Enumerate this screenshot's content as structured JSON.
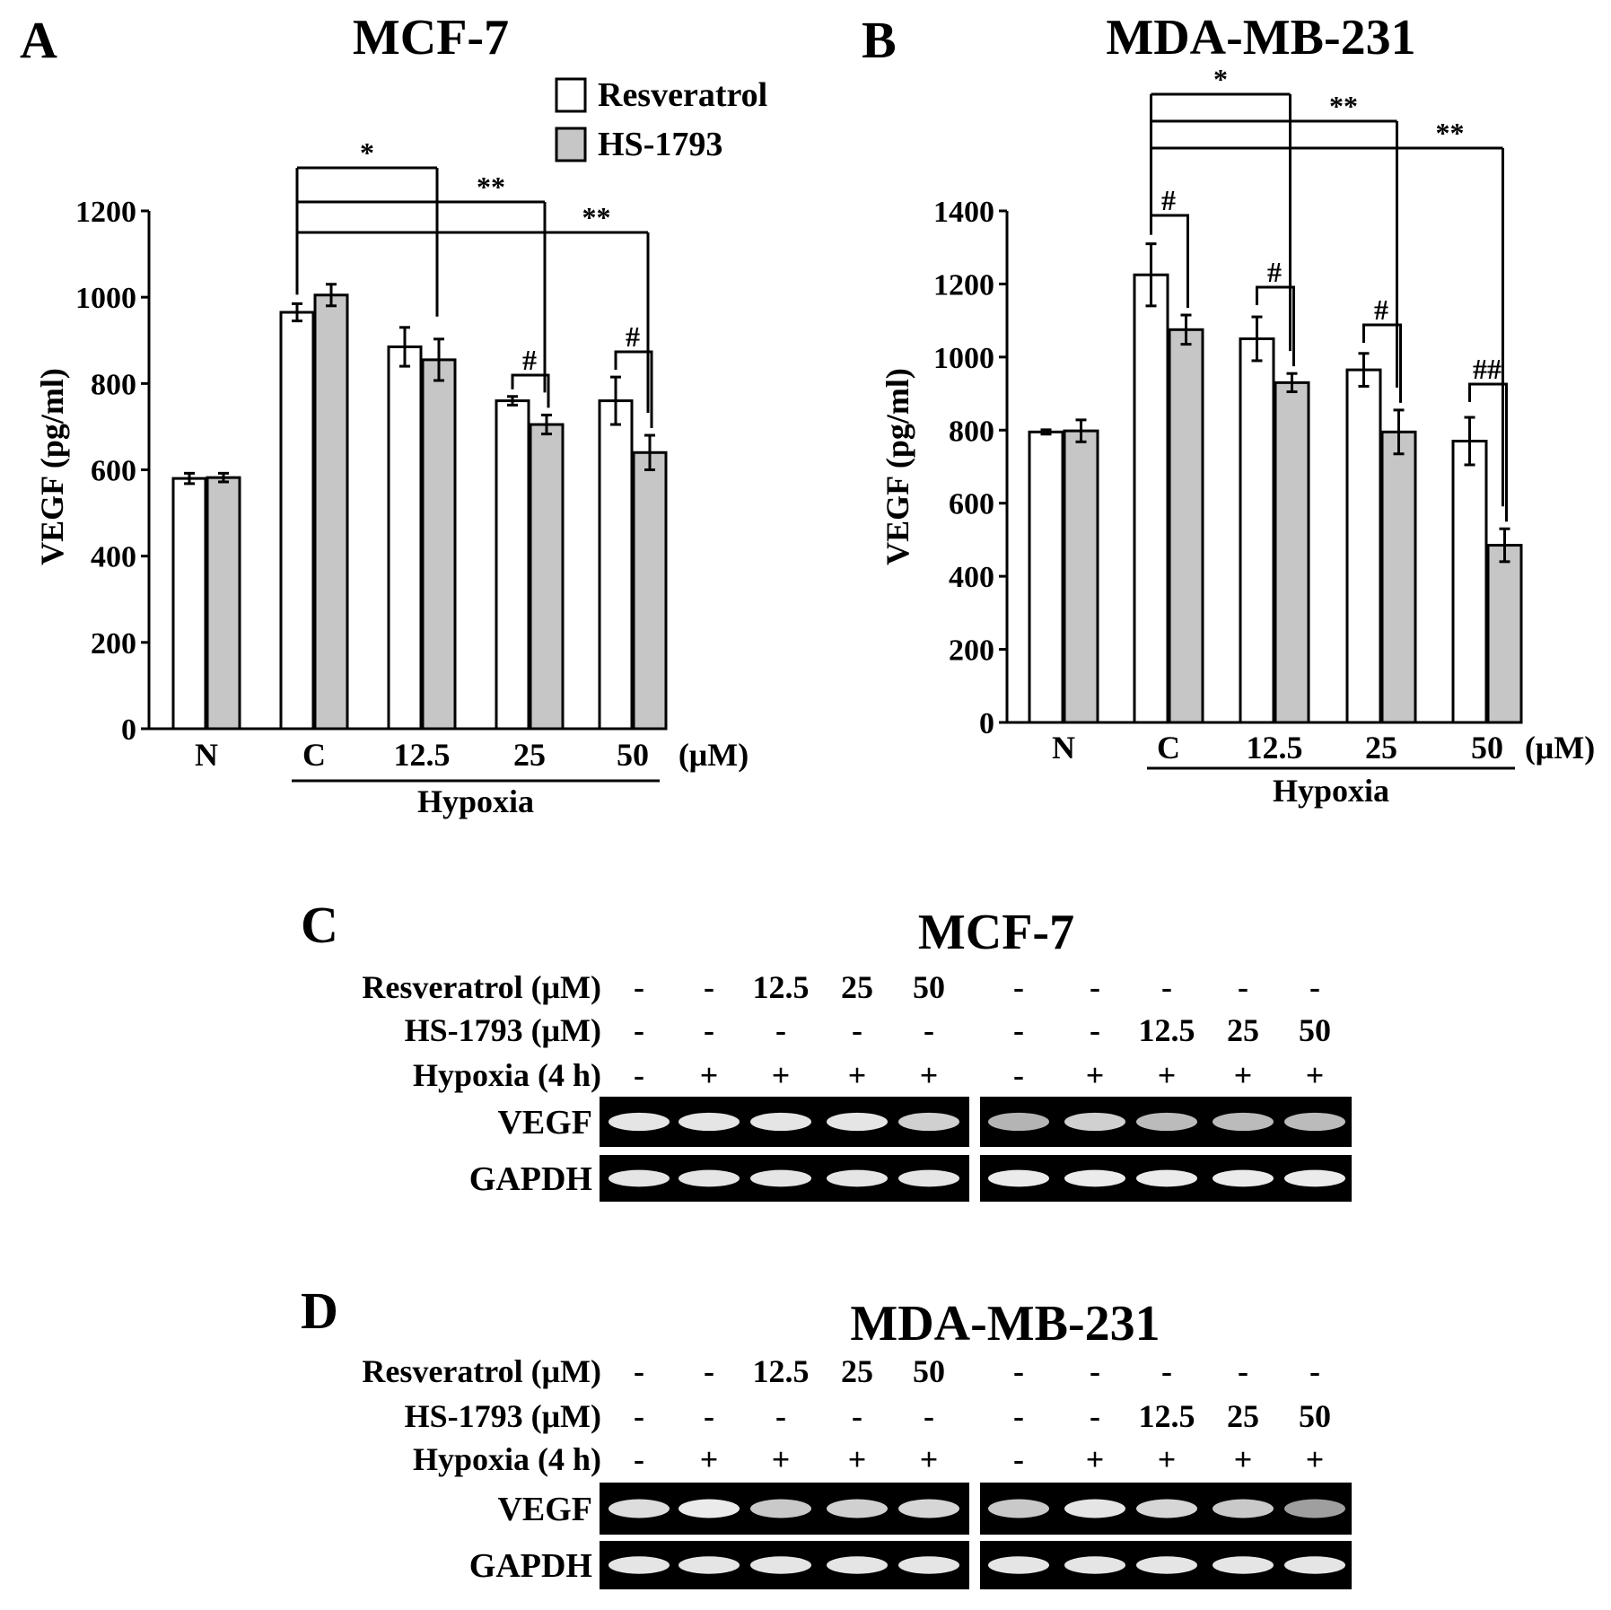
{
  "legend": {
    "items": [
      {
        "name": "Resveratrol",
        "color": "#ffffff"
      },
      {
        "name": "HS-1793",
        "color": "#c6c6c6"
      }
    ]
  },
  "chart_data": [
    {
      "panel": "A",
      "type": "bar",
      "title": "MCF-7",
      "ylabel": "VEGF (pg/ml)",
      "xunit": "(μM)",
      "group_label": "Hypoxia",
      "categories": [
        "N",
        "C",
        "12.5",
        "25",
        "50"
      ],
      "ylim": [
        0,
        1200
      ],
      "yticks": [
        0,
        200,
        400,
        600,
        800,
        1000,
        1200
      ],
      "series": [
        {
          "name": "Resveratrol",
          "values": [
            580,
            965,
            885,
            760,
            760
          ],
          "errors": [
            12,
            20,
            45,
            10,
            55
          ]
        },
        {
          "name": "HS-1793",
          "values": [
            582,
            1005,
            855,
            705,
            640
          ],
          "errors": [
            10,
            25,
            48,
            22,
            40
          ]
        }
      ],
      "comparison_brackets": [
        {
          "from": "C",
          "to": "12.5",
          "label": "*"
        },
        {
          "from": "C",
          "to": "25",
          "label": "**"
        },
        {
          "from": "C",
          "to": "50",
          "label": "**"
        }
      ],
      "pair_marks": [
        {
          "category": "25",
          "label": "#"
        },
        {
          "category": "50",
          "label": "#"
        }
      ]
    },
    {
      "panel": "B",
      "type": "bar",
      "title": "MDA-MB-231",
      "ylabel": "VEGF (pg/ml)",
      "xunit": "(μM)",
      "group_label": "Hypoxia",
      "categories": [
        "N",
        "C",
        "12.5",
        "25",
        "50"
      ],
      "ylim": [
        0,
        1400
      ],
      "yticks": [
        0,
        200,
        400,
        600,
        800,
        1000,
        1200,
        1400
      ],
      "series": [
        {
          "name": "Resveratrol",
          "values": [
            795,
            1225,
            1050,
            965,
            770
          ],
          "errors": [
            6,
            85,
            60,
            45,
            65
          ]
        },
        {
          "name": "HS-1793",
          "values": [
            798,
            1075,
            930,
            795,
            485
          ],
          "errors": [
            30,
            40,
            25,
            60,
            45
          ]
        }
      ],
      "comparison_brackets": [
        {
          "from": "C",
          "to": "12.5",
          "label": "*"
        },
        {
          "from": "C",
          "to": "25",
          "label": "**"
        },
        {
          "from": "C",
          "to": "50",
          "label": "**"
        }
      ],
      "pair_marks": [
        {
          "category": "C",
          "label": "#"
        },
        {
          "category": "12.5",
          "label": "#"
        },
        {
          "category": "25",
          "label": "#"
        },
        {
          "category": "50",
          "label": "##"
        }
      ]
    }
  ],
  "gels": [
    {
      "panel": "C",
      "title": "MCF-7",
      "rows": [
        {
          "label": "Resveratrol (μM)",
          "values": [
            "-",
            "-",
            "12.5",
            "25",
            "50",
            "-",
            "-",
            "-",
            "-",
            "-"
          ]
        },
        {
          "label": "HS-1793 (μM)",
          "values": [
            "-",
            "-",
            "-",
            "-",
            "-",
            "-",
            "-",
            "12.5",
            "25",
            "50"
          ]
        },
        {
          "label": "Hypoxia (4 h)",
          "values": [
            "-",
            "+",
            "+",
            "+",
            "+",
            "-",
            "+",
            "+",
            "+",
            "+"
          ]
        }
      ],
      "bands": [
        {
          "label": "VEGF",
          "intensity": [
            0.9,
            0.9,
            0.9,
            0.9,
            0.75,
            0.55,
            0.75,
            0.6,
            0.6,
            0.6
          ]
        },
        {
          "label": "GAPDH",
          "intensity": [
            0.9,
            0.9,
            0.9,
            0.9,
            0.9,
            0.95,
            0.95,
            0.95,
            0.95,
            0.95
          ]
        }
      ]
    },
    {
      "panel": "D",
      "title": "MDA-MB-231",
      "rows": [
        {
          "label": "Resveratrol (μM)",
          "values": [
            "-",
            "-",
            "12.5",
            "25",
            "50",
            "-",
            "-",
            "-",
            "-",
            "-"
          ]
        },
        {
          "label": "HS-1793 (μM)",
          "values": [
            "-",
            "-",
            "-",
            "-",
            "-",
            "-",
            "-",
            "12.5",
            "25",
            "50"
          ]
        },
        {
          "label": "Hypoxia (4 h)",
          "values": [
            "-",
            "+",
            "+",
            "+",
            "+",
            "-",
            "+",
            "+",
            "+",
            "+"
          ]
        }
      ],
      "bands": [
        {
          "label": "VEGF",
          "intensity": [
            0.85,
            0.95,
            0.7,
            0.75,
            0.8,
            0.7,
            0.9,
            0.8,
            0.7,
            0.4
          ]
        },
        {
          "label": "GAPDH",
          "intensity": [
            0.9,
            0.9,
            0.9,
            0.9,
            0.9,
            0.9,
            0.9,
            0.9,
            0.9,
            0.9
          ]
        }
      ]
    }
  ]
}
